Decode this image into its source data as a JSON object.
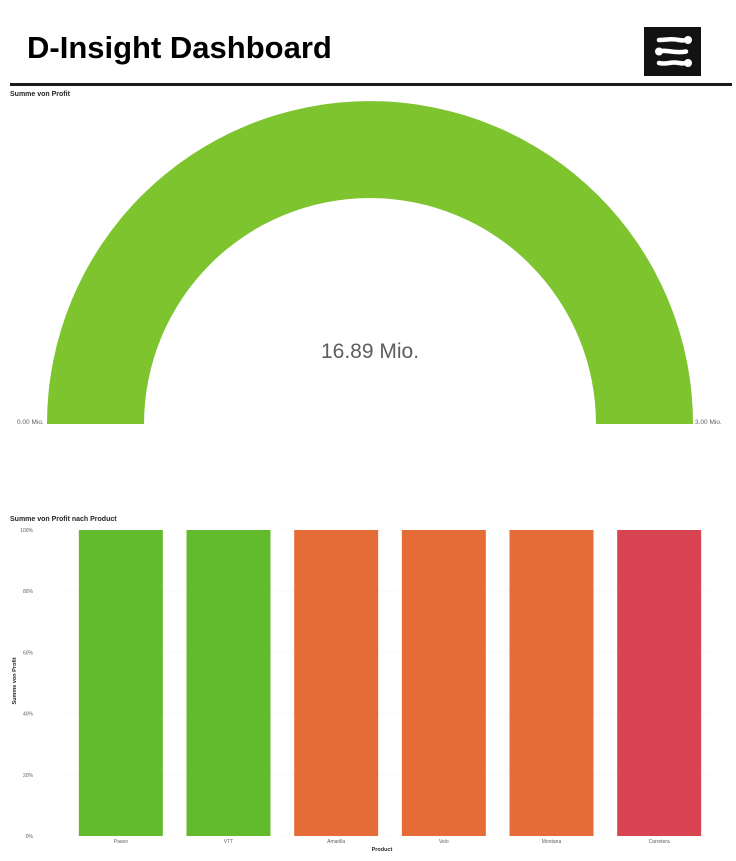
{
  "header": {
    "title": "D-Insight Dashboard",
    "logo_icon": "connected-nodes-logo-icon"
  },
  "chart_data": [
    {
      "type": "gauge",
      "title": "Summe von Profit",
      "value": 16.89,
      "value_label": "16.89 Mio.",
      "min_label": "0.00 Mio.",
      "max_label": "3.00 Mio.",
      "fill_fraction": 1.0,
      "color": "#7DC42F"
    },
    {
      "type": "bar",
      "title": "Summe von Profit nach Product",
      "xlabel": "Product",
      "ylabel": "Summe von Profit",
      "ylim": [
        0,
        100
      ],
      "yticks": [
        "0%",
        "20%",
        "40%",
        "60%",
        "80%",
        "100%"
      ],
      "categories": [
        "Paseo",
        "VTT",
        "Amarilla",
        "Velo",
        "Montana",
        "Carretera"
      ],
      "values": [
        100,
        100,
        100,
        100,
        100,
        100
      ],
      "colors": [
        "#62BB2C",
        "#62BB2C",
        "#E66C37",
        "#E66C37",
        "#E66C37",
        "#D84451"
      ],
      "grid": true
    }
  ]
}
